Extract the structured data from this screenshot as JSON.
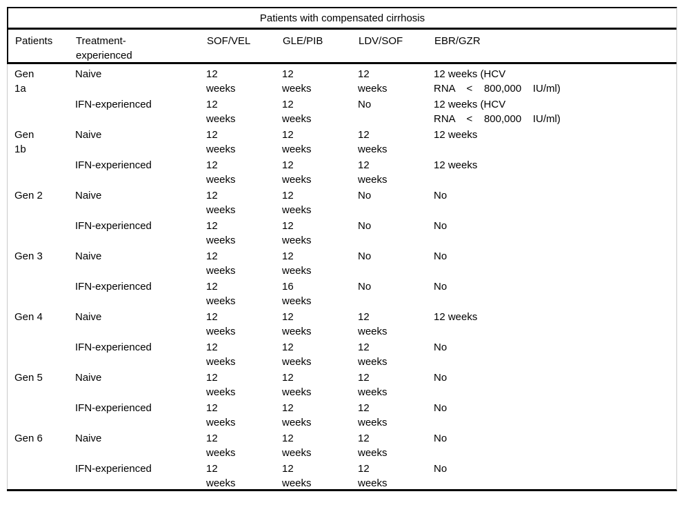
{
  "table": {
    "title": "Patients with compensated cirrhosis",
    "columns": [
      "Patients",
      "Treatment-\nexperienced",
      "SOF/VEL",
      "GLE/PIB",
      "LDV/SOF",
      "EBR/GZR"
    ],
    "rows": [
      {
        "cells": [
          "Gen\n1a",
          "Naive",
          "12\nweeks",
          "12\nweeks",
          "12\nweeks",
          "12 weeks (HCV\nRNA    <    800,000    IU/ml)"
        ]
      },
      {
        "cells": [
          "",
          "IFN-experienced",
          "12\nweeks",
          "12\nweeks",
          "No",
          "12 weeks (HCV\nRNA    <    800,000    IU/ml)"
        ]
      },
      {
        "cells": [
          "Gen\n1b",
          "Naive",
          "12\nweeks",
          "12\nweeks",
          "12\nweeks",
          "12 weeks"
        ]
      },
      {
        "cells": [
          "",
          "IFN-experienced",
          "12\nweeks",
          "12\nweeks",
          "12\nweeks",
          "12 weeks"
        ]
      },
      {
        "cells": [
          "Gen 2",
          "Naive",
          "12\nweeks",
          "12\nweeks",
          "No",
          "No"
        ]
      },
      {
        "cells": [
          "",
          "IFN-experienced",
          "12\nweeks",
          "12\nweeks",
          "No",
          "No"
        ]
      },
      {
        "cells": [
          "Gen 3",
          "Naive",
          "12\nweeks",
          "12\nweeks",
          "No",
          "No"
        ]
      },
      {
        "cells": [
          "",
          "IFN-experienced",
          "12\nweeks",
          "16\nweeks",
          "No",
          "No"
        ]
      },
      {
        "cells": [
          "Gen 4",
          "Naive",
          "12\nweeks",
          "12\nweeks",
          "12\nweeks",
          "12 weeks"
        ]
      },
      {
        "cells": [
          "",
          "IFN-experienced",
          "12\nweeks",
          "12\nweeks",
          "12\nweeks",
          "No"
        ]
      },
      {
        "cells": [
          "Gen 5",
          "Naive",
          "12\nweeks",
          "12\nweeks",
          "12\nweeks",
          "No"
        ]
      },
      {
        "cells": [
          "",
          "IFN-experienced",
          "12\nweeks",
          "12\nweeks",
          "12\nweeks",
          "No"
        ]
      },
      {
        "cells": [
          "Gen 6",
          "Naive",
          "12\nweeks",
          "12\nweeks",
          "12\nweeks",
          "No"
        ]
      },
      {
        "cells": [
          "",
          "IFN-experienced",
          "12\nweeks",
          "12\nweeks",
          "12\nweeks",
          "No"
        ]
      }
    ],
    "colors": {
      "rule": "#000000",
      "side_border": "#c9c9c9",
      "text": "#000000",
      "background": "#ffffff"
    }
  }
}
